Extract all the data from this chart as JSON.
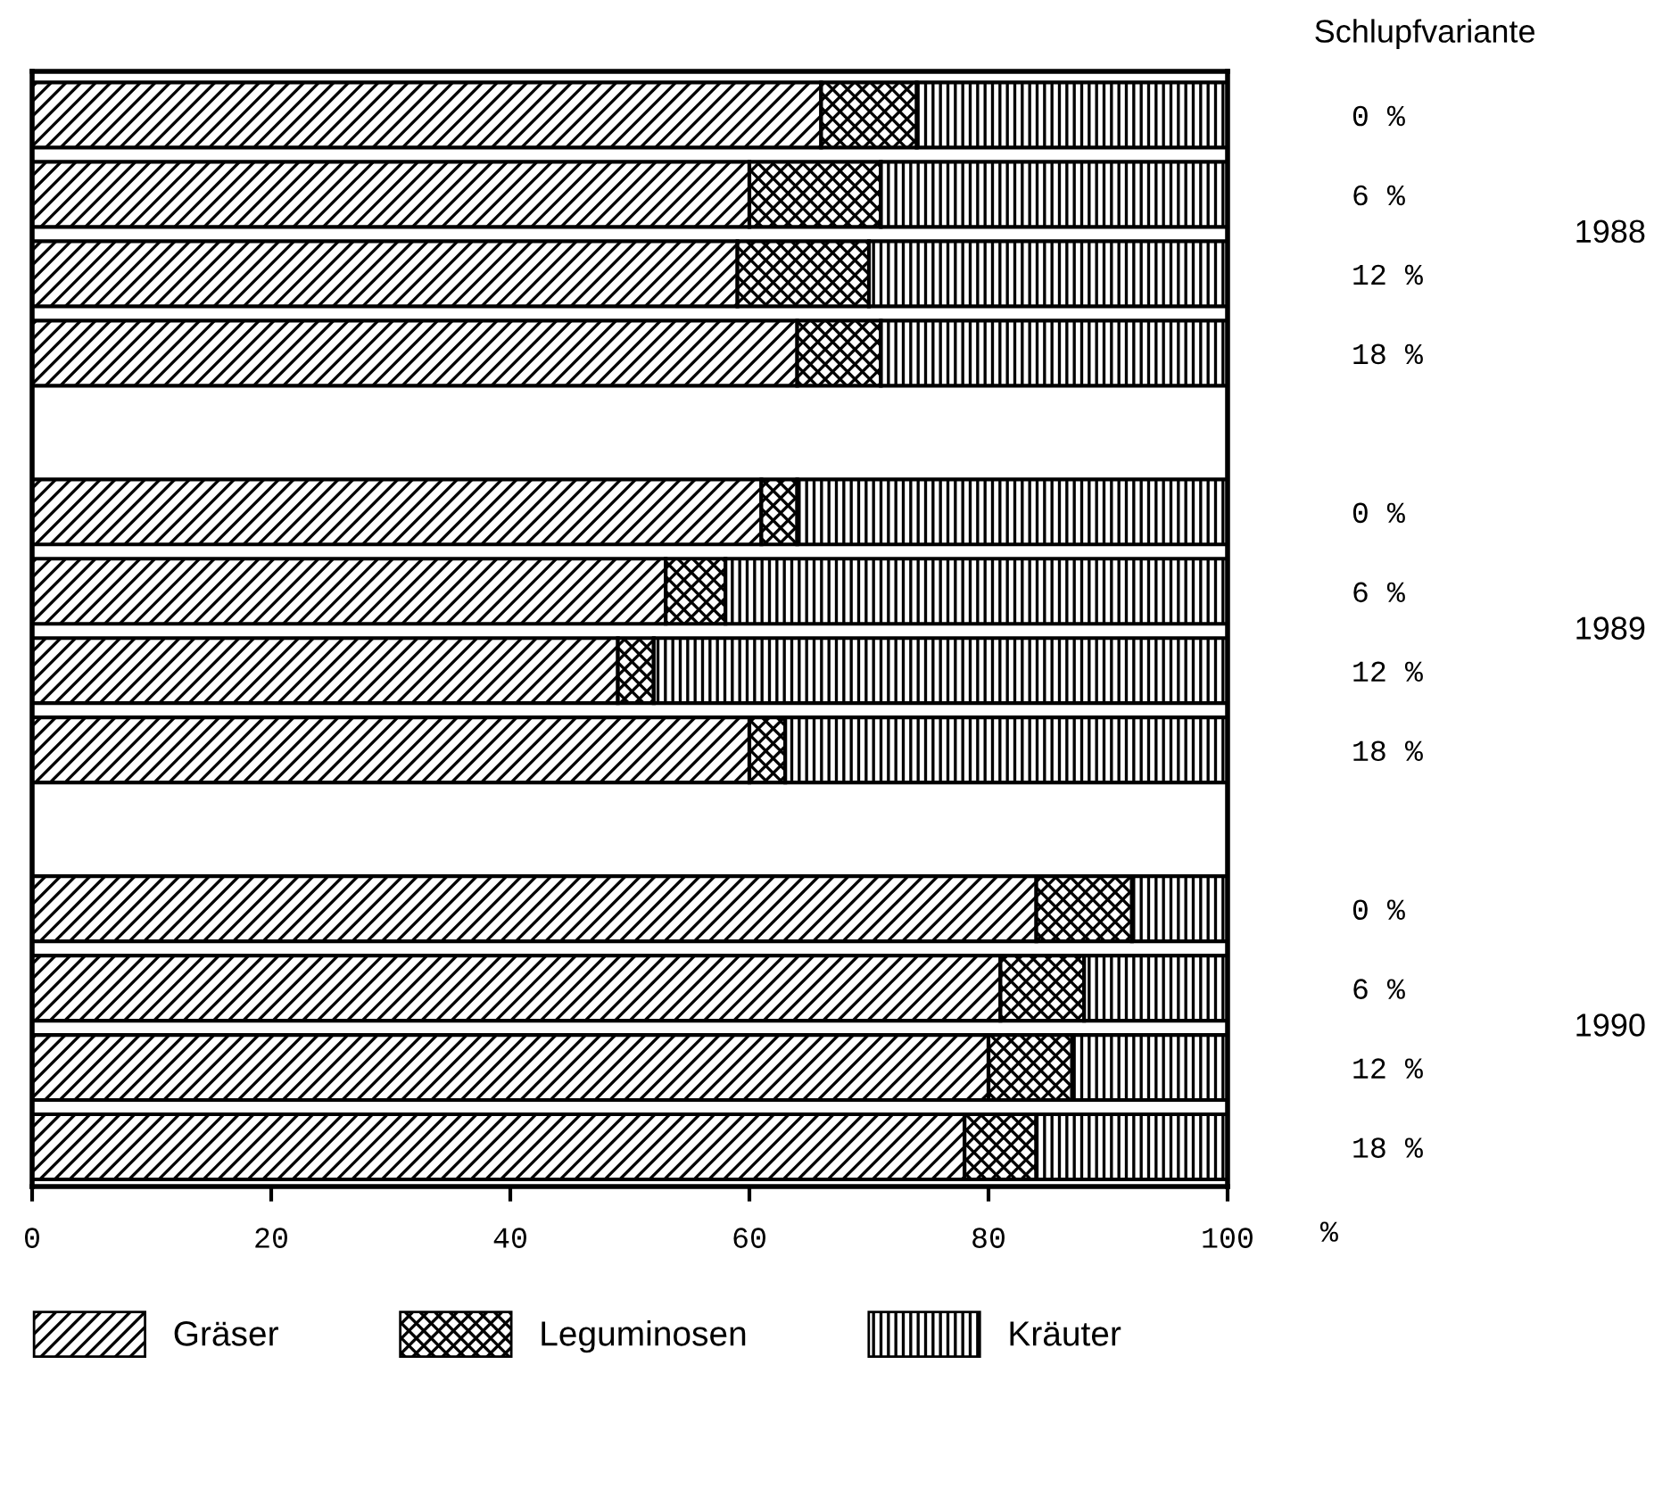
{
  "chart_data": {
    "type": "bar",
    "orientation": "horizontal",
    "stacked": true,
    "categories": [
      "0 %",
      "6 %",
      "12 %",
      "18 %",
      null,
      "0 %",
      "6 %",
      "12 %",
      "18 %",
      null,
      "0 %",
      "6 %",
      "12 %",
      "18 %"
    ],
    "series": [
      {
        "name": "Gräser",
        "color": "#000000",
        "values": [
          66,
          60,
          59,
          64,
          null,
          61,
          53,
          49,
          60,
          null,
          84,
          81,
          80,
          78
        ]
      },
      {
        "name": "Leguminosen",
        "color": "#000000",
        "values": [
          8,
          11,
          11,
          7,
          null,
          3,
          5,
          3,
          3,
          null,
          8,
          7,
          7,
          6
        ]
      },
      {
        "name": "Kräuter",
        "color": "#000000",
        "values": [
          26,
          29,
          30,
          29,
          null,
          36,
          42,
          48,
          37,
          null,
          8,
          12,
          13,
          16
        ]
      }
    ],
    "xlim": [
      0,
      100
    ],
    "xticks": [
      0,
      20,
      40,
      60,
      80,
      100
    ],
    "xlabel": "%",
    "annotations": [
      "Schlupfvariante",
      "1988",
      "1989",
      "1990"
    ],
    "legend": "bottom",
    "grid": false
  }
}
